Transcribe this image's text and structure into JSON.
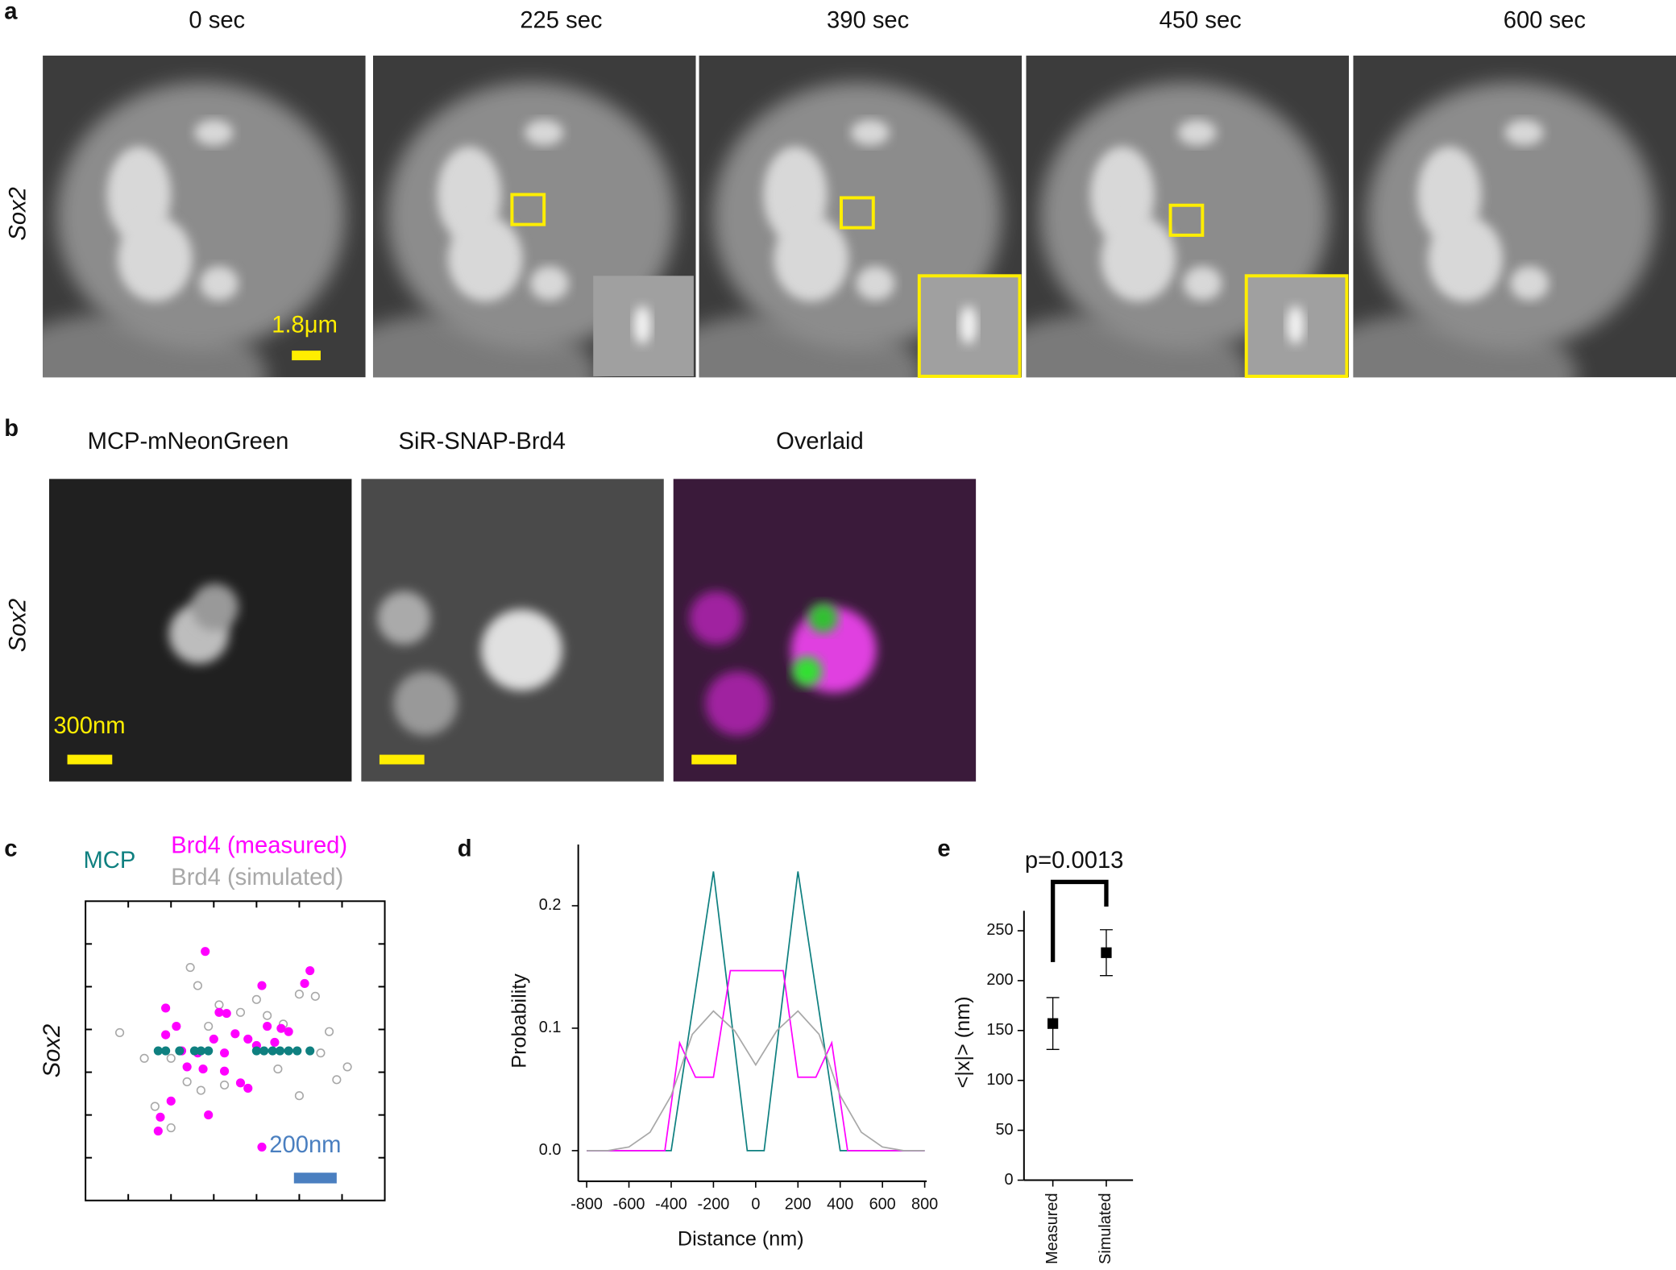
{
  "panels": {
    "a": {
      "label": "a",
      "times": [
        "0 sec",
        "225 sec",
        "390 sec",
        "450 sec",
        "600 sec"
      ],
      "row_label": "Sox2",
      "scale_label": "1.8μm"
    },
    "b": {
      "label": "b",
      "titles": [
        "MCP-mNeonGreen",
        "SiR-SNAP-Brd4",
        "Overlaid"
      ],
      "row_label": "Sox2",
      "scale_label": "300nm"
    }
  },
  "chart_data": [
    {
      "type": "scatter",
      "panel": "c",
      "row_label": "Sox2",
      "scale_label": "200nm",
      "xlim": [
        -700,
        700
      ],
      "ylim": [
        -700,
        700
      ],
      "series": [
        {
          "name": "MCP",
          "color": "#0f8080",
          "fill": true,
          "x": [
            -360,
            -325,
            -260,
            -190,
            -160,
            -125,
            100,
            135,
            175,
            210,
            250,
            290,
            350
          ],
          "values": [
            0,
            0,
            0,
            0,
            0,
            0,
            0,
            0,
            0,
            0,
            0,
            0,
            0
          ]
        },
        {
          "name": "Brd4 (measured)",
          "color": "#ff00ff",
          "fill": true,
          "x": [
            -140,
            350,
            325,
            -325,
            -75,
            -40,
            125,
            -275,
            150,
            -250,
            -175,
            0,
            60,
            100,
            -225,
            -150,
            -50,
            25,
            60,
            -300,
            -125,
            -350,
            -360,
            125,
            215,
            250,
            -100,
            -50,
            185,
            -325
          ],
          "values": [
            465,
            375,
            315,
            200,
            180,
            175,
            305,
            115,
            115,
            0,
            -10,
            80,
            55,
            25,
            -75,
            -85,
            -95,
            -150,
            -175,
            -235,
            -300,
            -310,
            -375,
            -450,
            105,
            90,
            55,
            -10,
            40,
            75
          ]
        },
        {
          "name": "Brd4 (simulated)",
          "color": "#a8a8a8",
          "fill": false,
          "x": [
            -540,
            -210,
            -175,
            375,
            300,
            -425,
            100,
            225,
            440,
            525,
            150,
            -125,
            -300,
            -225,
            -160,
            -375,
            -50,
            200,
            300,
            400,
            475,
            -300,
            -75,
            25
          ],
          "values": [
            85,
            390,
            305,
            255,
            265,
            -35,
            240,
            125,
            90,
            -75,
            165,
            115,
            -35,
            -145,
            -185,
            -260,
            -160,
            -85,
            -210,
            -10,
            -135,
            -360,
            215,
            180
          ]
        }
      ]
    },
    {
      "type": "line",
      "panel": "d",
      "xlabel": "Distance (nm)",
      "ylabel": "Probability",
      "xlim": [
        -850,
        850
      ],
      "ylim": [
        -0.025,
        0.25
      ],
      "xticks": [
        -800,
        -600,
        -400,
        -200,
        0,
        200,
        400,
        600,
        800
      ],
      "yticks": [
        {
          "value": 0,
          "label": "0.0"
        },
        0.1,
        0.2
      ],
      "series": [
        {
          "name": "MCP",
          "color": "#0f8080",
          "x": [
            -800,
            -400,
            -200,
            -40,
            40,
            200,
            400,
            800
          ],
          "values": [
            0,
            0,
            0.228,
            0,
            0,
            0.228,
            0,
            0
          ]
        },
        {
          "name": "Brd4 (measured)",
          "color": "#ff00ff",
          "x": [
            -800,
            -430,
            -360,
            -285,
            -200,
            -120,
            130,
            200,
            285,
            360,
            435,
            800
          ],
          "values": [
            0,
            0,
            0.088,
            0.06,
            0.06,
            0.147,
            0.147,
            0.06,
            0.06,
            0.088,
            0,
            0
          ]
        },
        {
          "name": "Brd4 (simulated)",
          "color": "#a8a8a8",
          "x": [
            -800,
            -700,
            -600,
            -500,
            -400,
            -300,
            -200,
            -100,
            0,
            100,
            200,
            300,
            400,
            500,
            600,
            700,
            800
          ],
          "values": [
            0,
            0,
            0.003,
            0.015,
            0.045,
            0.095,
            0.114,
            0.098,
            0.07,
            0.098,
            0.114,
            0.095,
            0.045,
            0.015,
            0.003,
            0,
            0
          ]
        }
      ]
    },
    {
      "type": "errorbar",
      "panel": "e",
      "ylabel": "<|x|> (nm)",
      "annotation": "p=0.0013",
      "categories": [
        "Measured",
        "Simulated"
      ],
      "values": [
        157,
        228
      ],
      "errors": [
        26,
        23
      ],
      "color": "#000000",
      "ylim": [
        0,
        270
      ],
      "yticks": [
        0,
        50,
        100,
        150,
        200,
        250
      ]
    }
  ]
}
